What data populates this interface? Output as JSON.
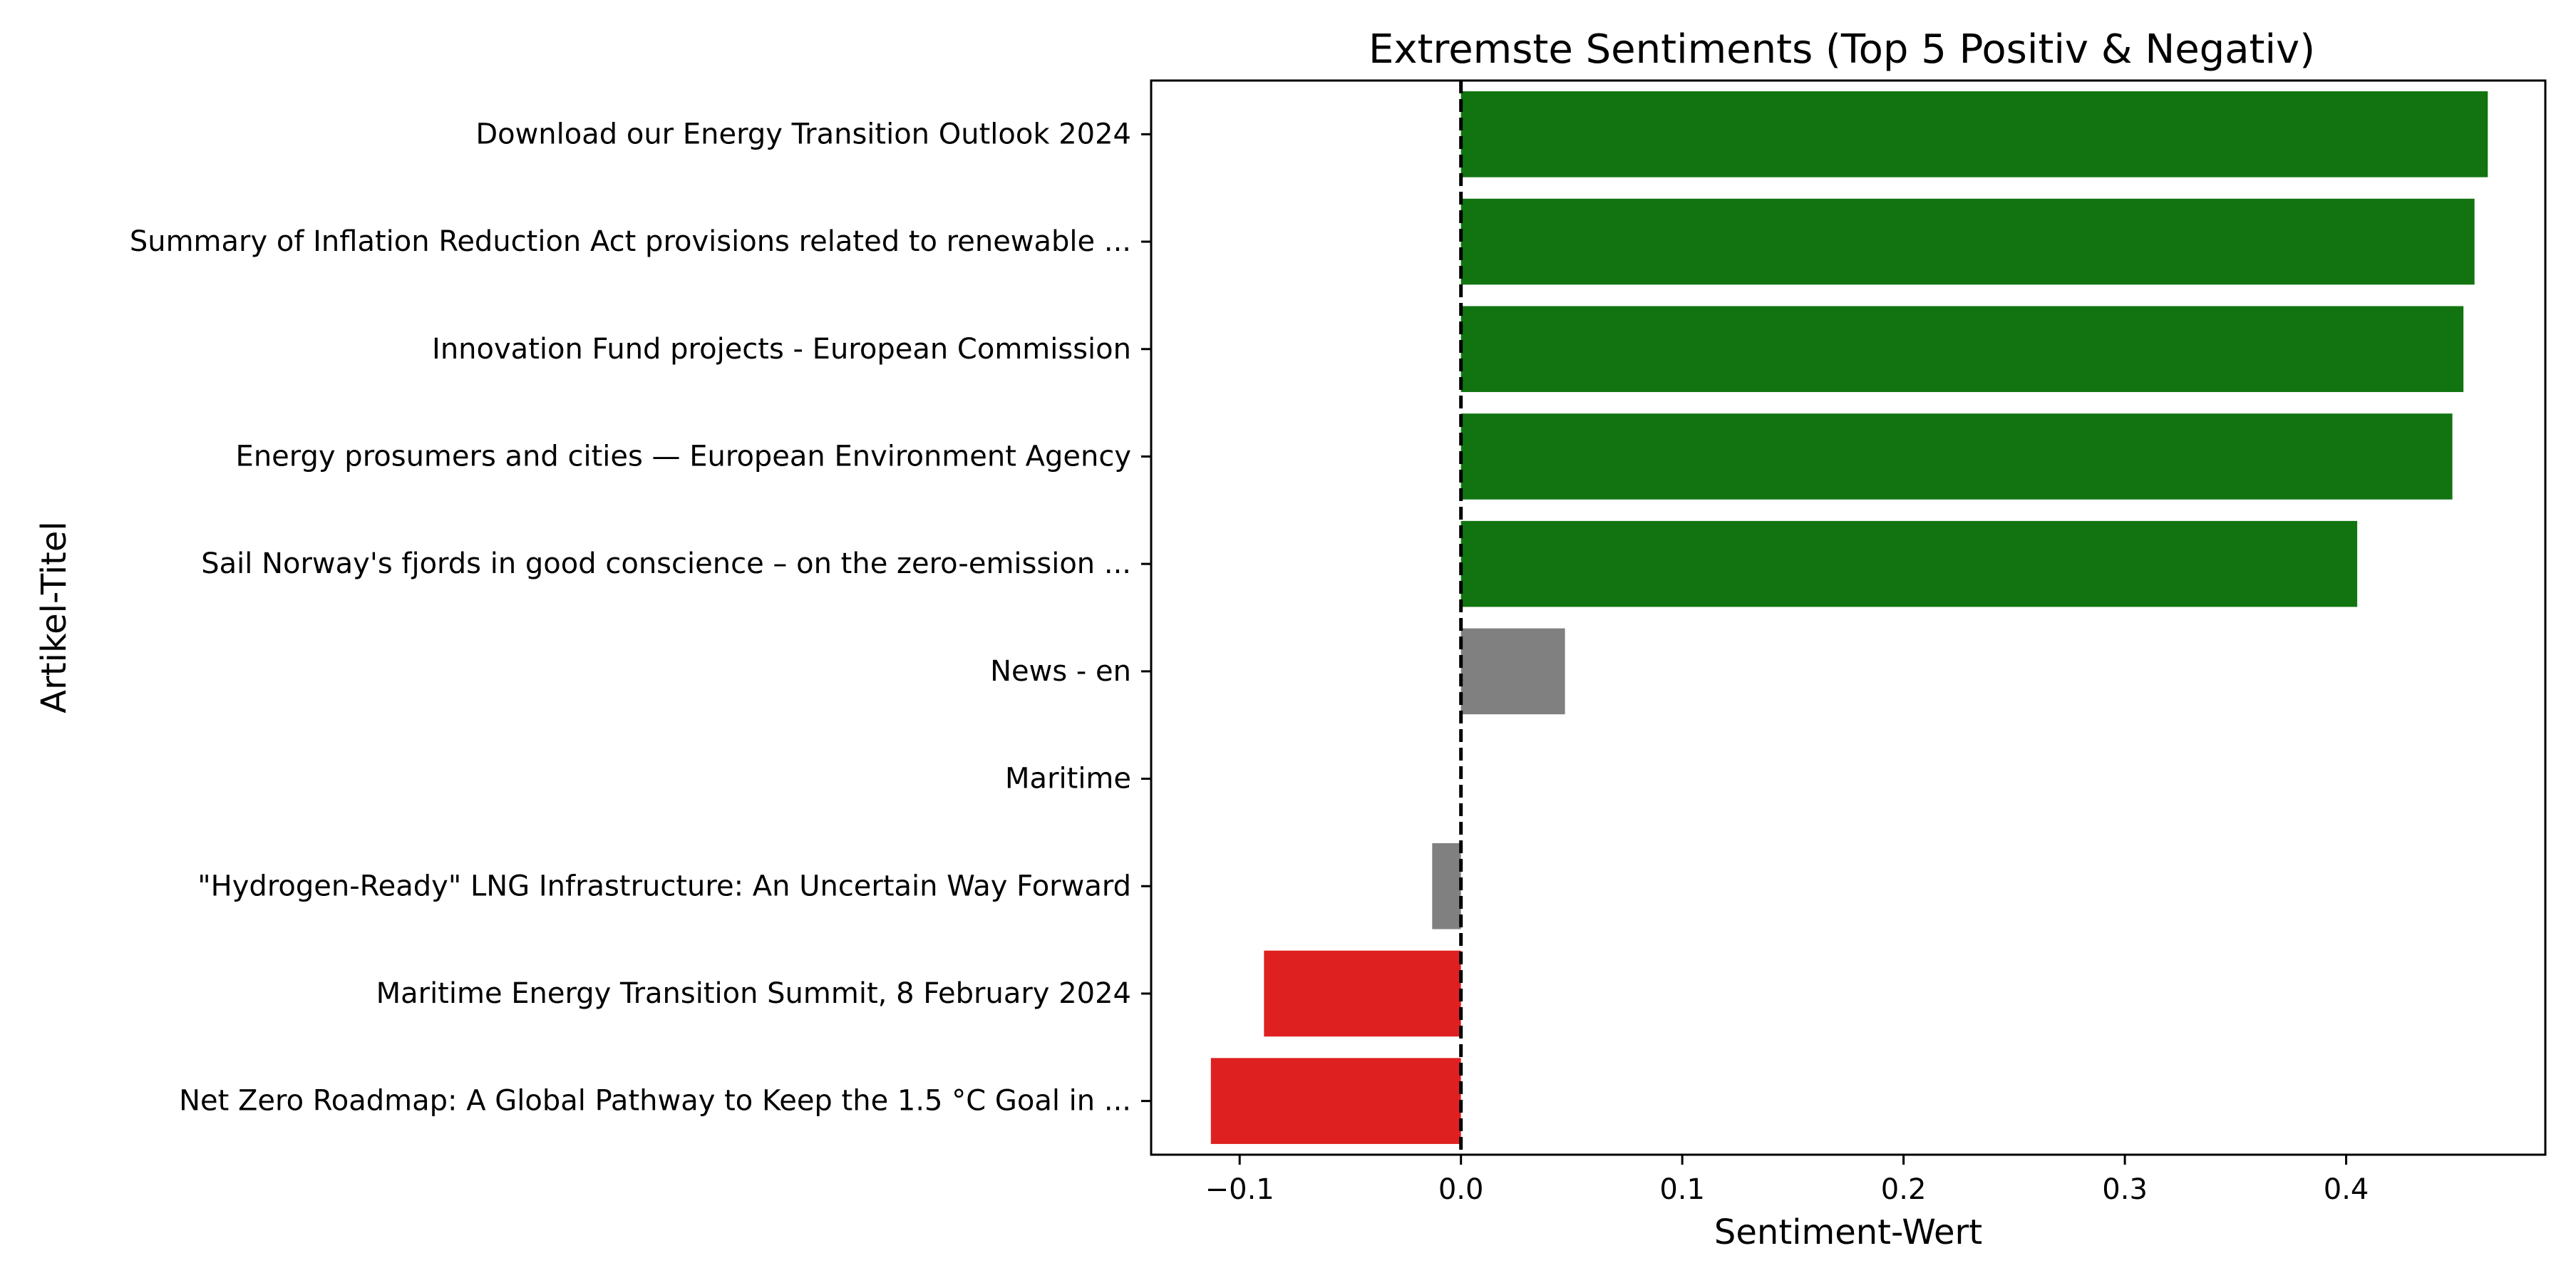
{
  "chart_data": {
    "type": "bar",
    "orientation": "horizontal",
    "title": "Extremste Sentiments (Top 5 Positiv & Negativ)",
    "xlabel": "Sentiment-Wert",
    "ylabel": "Artikel-Titel",
    "xlim": [
      -0.14,
      0.49
    ],
    "x_ticks": [
      -0.1,
      0.0,
      0.1,
      0.2,
      0.3,
      0.4
    ],
    "x_tick_labels": [
      "−0.1",
      "0.0",
      "0.1",
      "0.2",
      "0.3",
      "0.4"
    ],
    "reference_line": {
      "x": 0.0,
      "style": "dashed",
      "color": "#000000"
    },
    "grid": false,
    "categories": [
      "Download our Energy Transition Outlook 2024",
      "Summary of Inflation Reduction Act provisions related to renewable ...",
      "Innovation Fund projects - European Commission",
      "Energy prosumers and cities — European Environment Agency",
      "Sail Norway's fjords in good conscience – on the zero-emission ...",
      "News - en",
      "Maritime",
      "\"Hydrogen-Ready\" LNG Infrastructure: An Uncertain Way Forward",
      "Maritime Energy Transition Summit, 8 February 2024",
      "Net Zero Roadmap: A Global Pathway to Keep the 1.5 °C Goal in ..."
    ],
    "values": [
      0.464,
      0.458,
      0.453,
      0.448,
      0.405,
      0.047,
      0.0,
      -0.013,
      -0.089,
      -0.113
    ],
    "bar_colors": [
      "#117411",
      "#117411",
      "#117411",
      "#117411",
      "#117411",
      "#808080",
      "#808080",
      "#808080",
      "#df2020",
      "#df2020"
    ],
    "colors": {
      "positive": "#117411",
      "neutral": "#808080",
      "negative": "#df2020"
    }
  }
}
